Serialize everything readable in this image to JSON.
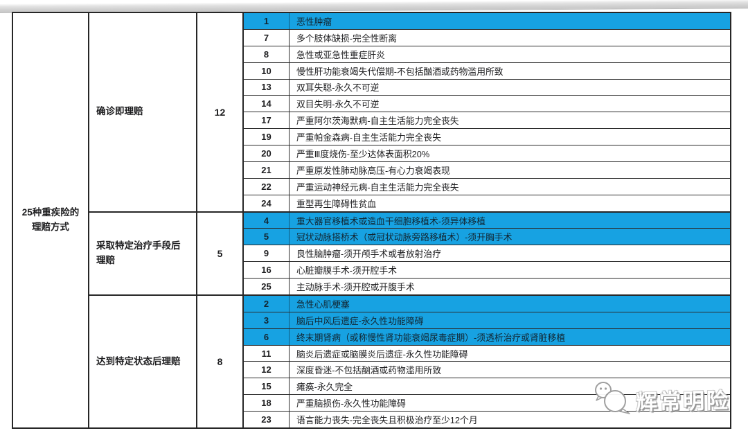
{
  "table": {
    "title_line1": "25种重疾险的",
    "title_line2": "理赔方式",
    "groups": [
      {
        "method": "确诊即理赔",
        "count": "12",
        "rows": [
          {
            "no": "1",
            "name": "恶性肿瘤",
            "hl": true
          },
          {
            "no": "7",
            "name": "多个肢体缺损-完全性断离",
            "hl": false
          },
          {
            "no": "8",
            "name": "急性或亚急性重症肝炎",
            "hl": false
          },
          {
            "no": "10",
            "name": "慢性肝功能衰竭失代偿期-不包括酗酒或药物滥用所致",
            "hl": false
          },
          {
            "no": "13",
            "name": "双耳失聪-永久不可逆",
            "hl": false
          },
          {
            "no": "14",
            "name": "双目失明-永久不可逆",
            "hl": false
          },
          {
            "no": "17",
            "name": "严重阿尔茨海默病-自主生活能力完全丧失",
            "hl": false
          },
          {
            "no": "19",
            "name": "严重帕金森病-自主生活能力完全丧失",
            "hl": false
          },
          {
            "no": "20",
            "name": "严重Ⅲ度烧伤-至少达体表面积20%",
            "hl": false
          },
          {
            "no": "21",
            "name": "严重原发性肺动脉高压-有心力衰竭表现",
            "hl": false
          },
          {
            "no": "22",
            "name": "严重运动神经元病-自主生活能力完全丧失",
            "hl": false
          },
          {
            "no": "24",
            "name": "重型再生障碍性贫血",
            "hl": false
          }
        ]
      },
      {
        "method": "采取特定治疗手段后理赔",
        "count": "5",
        "rows": [
          {
            "no": "4",
            "name": "重大器官移植术或造血干细胞移植术-须异体移植",
            "hl": true
          },
          {
            "no": "5",
            "name": "冠状动脉搭桥术（或冠状动脉旁路移植术）-须开胸手术",
            "hl": true
          },
          {
            "no": "9",
            "name": "良性脑肿瘤-须开颅手术或者放射治疗",
            "hl": false
          },
          {
            "no": "16",
            "name": "心脏瓣膜手术-须开腔手术",
            "hl": false
          },
          {
            "no": "25",
            "name": "主动脉手术-须开腔或开腹手术",
            "hl": false
          }
        ]
      },
      {
        "method": "达到特定状态后理赔",
        "count": "8",
        "rows": [
          {
            "no": "2",
            "name": "急性心肌梗塞",
            "hl": true
          },
          {
            "no": "3",
            "name": "脑后中风后遗症-永久性功能障碍",
            "hl": true
          },
          {
            "no": "6",
            "name": "终末期肾病（或称慢性肾功能衰竭尿毒症期）-须透析治疗或肾脏移植",
            "hl": true
          },
          {
            "no": "11",
            "name": "脑炎后遗症或脑膜炎后遗症-永久性功能障碍",
            "hl": false
          },
          {
            "no": "12",
            "name": "深度昏迷-不包括酗酒或药物滥用所致",
            "hl": false
          },
          {
            "no": "15",
            "name": "瘫痪-永久完全",
            "hl": false
          },
          {
            "no": "18",
            "name": "严重脑损伤-永久性功能障碍",
            "hl": false
          },
          {
            "no": "23",
            "name": "语言能力丧失-完全丧失且积极治疗至少12个月",
            "hl": false
          }
        ]
      }
    ]
  },
  "watermark": {
    "text": "辉常明险"
  },
  "colors": {
    "highlight_blue": "#17a2e2",
    "border_dark": "#262626"
  }
}
